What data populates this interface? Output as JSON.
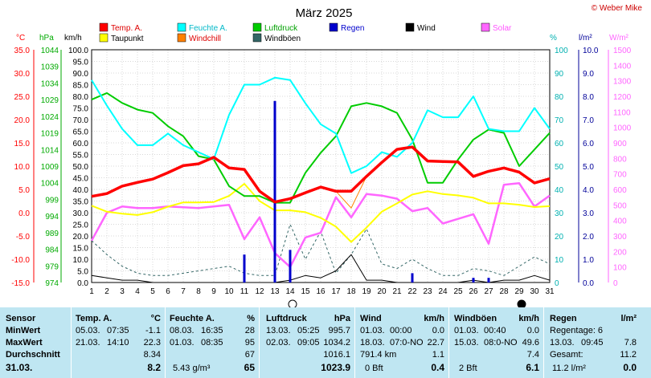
{
  "title": "März 2025",
  "copyright": "© Weber Mike",
  "colors": {
    "temp": "#ff0000",
    "dew": "#ffff00",
    "humidity": "#00ffff",
    "windchill": "#ff8000",
    "pressure": "#00cc00",
    "gusts": "#336666",
    "rain": "#0000cc",
    "wind": "#000000",
    "solar": "#ff66ff",
    "axis_c": "#ff0000",
    "axis_hpa": "#00aa00",
    "axis_pct": "#00b0b0",
    "axis_rain": "#000099",
    "axis_solar": "#ff66ff",
    "panel": "#bfe6f2"
  },
  "legend": [
    {
      "label": "Temp. A.",
      "color": "#ff0000"
    },
    {
      "label": "Feuchte A.",
      "color": "#00ffff"
    },
    {
      "label": "Luftdruck",
      "color": "#00cc00"
    },
    {
      "label": "Regen",
      "color": "#0000cc"
    },
    {
      "label": "Wind",
      "color": "#000000"
    },
    {
      "label": "Solar",
      "color": "#ff66ff"
    },
    {
      "label": "Taupunkt",
      "color": "#ffff00"
    },
    {
      "label": "Windchill",
      "color": "#ff8000"
    },
    {
      "label": "Windböen",
      "color": "#336666"
    }
  ],
  "axes": {
    "c": {
      "unit": "°C",
      "min": -15,
      "max": 35,
      "ticks": [
        "35.0",
        "30.0",
        "25.0",
        "20.0",
        "15.0",
        "10.0",
        "5.0",
        "0.0",
        "-5.0",
        "-10.0",
        "-15.0"
      ]
    },
    "hpa": {
      "unit": "hPa",
      "ticks": [
        "1044",
        "1039",
        "1034",
        "1029",
        "1024",
        "1019",
        "1014",
        "1009",
        "1004",
        "999",
        "994",
        "989",
        "984",
        "979",
        "974"
      ]
    },
    "kmh": {
      "unit": "km/h",
      "min": 0,
      "max": 100,
      "ticks": [
        "100.0",
        "95.0",
        "90.0",
        "85.0",
        "80.0",
        "75.0",
        "70.0",
        "65.0",
        "60.0",
        "55.0",
        "50.0",
        "45.0",
        "40.0",
        "35.0",
        "30.0",
        "25.0",
        "20.0",
        "15.0",
        "10.0",
        "5.0",
        "0.0"
      ]
    },
    "pct": {
      "unit": "%",
      "ticks": [
        "100",
        "90",
        "80",
        "70",
        "60",
        "50",
        "40",
        "30",
        "20",
        "10",
        "0"
      ]
    },
    "rain": {
      "unit": "l/m²",
      "ticks": [
        "10.0",
        "9.0",
        "8.0",
        "7.0",
        "6.0",
        "5.0",
        "4.0",
        "3.0",
        "2.0",
        "1.0",
        "0.0"
      ]
    },
    "solar": {
      "unit": "W/m²",
      "ticks": [
        "1500",
        "1400",
        "1300",
        "1200",
        "1100",
        "1000",
        "900",
        "800",
        "700",
        "600",
        "500",
        "400",
        "300",
        "200",
        "100",
        "0"
      ]
    },
    "days": [
      "1",
      "2",
      "3",
      "4",
      "5",
      "6",
      "7",
      "8",
      "9",
      "10",
      "11",
      "12",
      "13",
      "14",
      "15",
      "16",
      "17",
      "18",
      "19",
      "20",
      "21",
      "22",
      "23",
      "24",
      "25",
      "26",
      "27",
      "28",
      "29",
      "30",
      "31"
    ]
  },
  "chart_data": {
    "type": "line",
    "title": "März 2025",
    "x": [
      1,
      2,
      3,
      4,
      5,
      6,
      7,
      8,
      9,
      10,
      11,
      12,
      13,
      14,
      15,
      16,
      17,
      18,
      19,
      20,
      21,
      22,
      23,
      24,
      25,
      26,
      27,
      28,
      29,
      30,
      31
    ],
    "series": [
      {
        "name": "Temp. A.",
        "axis": "°C",
        "values": [
          3.5,
          4.1,
          5.7,
          6.5,
          7.2,
          8.6,
          10.1,
          10.5,
          11.9,
          9.6,
          9.3,
          4.6,
          2.3,
          3.0,
          4.3,
          5.5,
          4.6,
          4.6,
          7.8,
          10.8,
          13.6,
          14.1,
          11.1,
          11.0,
          10.9,
          7.8,
          8.9,
          9.6,
          8.7,
          6.4,
          7.3
        ]
      },
      {
        "name": "Taupunkt",
        "axis": "°C",
        "values": [
          1.5,
          0.2,
          -0.2,
          -0.5,
          0.1,
          1.3,
          2.2,
          2.2,
          2.3,
          3.6,
          6.2,
          2.5,
          0.5,
          0.5,
          0.1,
          -1.1,
          -3.0,
          -6.3,
          -3.2,
          0.2,
          2.0,
          3.9,
          4.6,
          4.0,
          3.7,
          3.2,
          2.0,
          2.0,
          1.7,
          1.2,
          1.4
        ]
      },
      {
        "name": "Feuchte A.",
        "axis": "%",
        "values": [
          87,
          76,
          66,
          59,
          59,
          64,
          59,
          56,
          53,
          72,
          85,
          85,
          88,
          87,
          77,
          68,
          64,
          47,
          50,
          56,
          54,
          60,
          74,
          71,
          71,
          80,
          66,
          65,
          65,
          75,
          66
        ]
      },
      {
        "name": "Windchill",
        "axis": "°C",
        "values": [
          3.5,
          4.1,
          5.7,
          6.5,
          7.2,
          8.6,
          10.1,
          10.5,
          11.9,
          9.6,
          9.3,
          4.6,
          2.3,
          3.0,
          4.3,
          5.5,
          4.6,
          1.0,
          7.8,
          10.8,
          13.6,
          14.1,
          11.1,
          11.0,
          10.9,
          7.8,
          8.9,
          9.6,
          8.7,
          6.4,
          7.3
        ]
      },
      {
        "name": "Luftdruck",
        "axis": "hPa",
        "values": [
          1029,
          1031,
          1028,
          1026,
          1025,
          1021,
          1018,
          1012,
          1011,
          1003,
          1000,
          1000,
          998,
          998,
          1007,
          1013,
          1018,
          1027,
          1028,
          1027,
          1025,
          1017,
          1004,
          1004,
          1011,
          1017,
          1020,
          1019,
          1009,
          1014,
          1019
        ]
      },
      {
        "name": "Windböen",
        "axis": "km/h",
        "values": [
          18,
          12,
          7,
          4,
          3,
          3,
          4,
          5,
          6,
          7,
          4,
          3,
          3,
          25,
          10,
          22,
          4,
          12,
          23,
          8,
          6,
          10,
          6,
          3,
          3,
          6,
          5,
          3,
          7,
          11,
          8
        ]
      },
      {
        "name": "Regen",
        "axis": "l/m²",
        "values": [
          0,
          0,
          0,
          0,
          0,
          0,
          0,
          0,
          0,
          0,
          1.2,
          0,
          7.8,
          1.4,
          0,
          0,
          0,
          0,
          0,
          0,
          0,
          0.4,
          0,
          0,
          0,
          0.2,
          0.2,
          0,
          0,
          0,
          0
        ]
      },
      {
        "name": "Wind",
        "axis": "km/h",
        "values": [
          3,
          2,
          1,
          1,
          0,
          0,
          0,
          0,
          0,
          0,
          0,
          0,
          0,
          1,
          3,
          2,
          5,
          12,
          1,
          1,
          0,
          0,
          0,
          0,
          0,
          1,
          0,
          1,
          1,
          3,
          1
        ]
      },
      {
        "name": "Solar",
        "axis": "W/m²",
        "values": [
          270,
          450,
          490,
          480,
          480,
          490,
          485,
          480,
          490,
          500,
          280,
          420,
          190,
          100,
          290,
          320,
          550,
          420,
          570,
          560,
          540,
          460,
          480,
          380,
          410,
          440,
          250,
          630,
          640,
          490,
          560
        ]
      }
    ],
    "markers": {
      "full_moon_day": 14,
      "new_moon_day": 29
    }
  },
  "stats": {
    "headers": {
      "sensor": "Sensor",
      "temp": "Temp. A.",
      "temp_unit": "°C",
      "hum": "Feuchte A.",
      "hum_unit": "%",
      "pres": "Luftdruck",
      "pres_unit": "hPa",
      "wind": "Wind",
      "wind_unit": "km/h",
      "gust": "Windböen",
      "gust_unit": "km/h",
      "rain": "Regen",
      "rain_unit": "l/m²"
    },
    "labels": {
      "min": "MinWert",
      "max": "MaxWert",
      "avg": "Durchschnitt",
      "date": "31.03."
    },
    "temp": {
      "min_date": "05.03.",
      "min_time": "07:35",
      "min_val": "-1.1",
      "max_date": "21.03.",
      "max_time": "14:10",
      "max_val": "22.3",
      "avg": "8.34",
      "current": "8.2"
    },
    "hum": {
      "min_date": "08.03.",
      "min_time": "16:35",
      "min_val": "28",
      "max_date": "01.03.",
      "max_time": "08:35",
      "max_val": "95",
      "avg": "67",
      "solar_val": "5.43 g/m³",
      "current": "65"
    },
    "pres": {
      "min_date": "13.03.",
      "min_time": "05:25",
      "min_val": "995.7",
      "max_date": "02.03.",
      "max_time": "09:05",
      "max_val": "1034.2",
      "avg": "1016.1",
      "current": "1023.9"
    },
    "wind": {
      "min_date": "01.03.",
      "min_time": "00:00",
      "min_val": "0.0",
      "max_date": "18.03.",
      "max_time": "07:0-NO",
      "max_val": "22.7",
      "dist": "791.4 km",
      "avg": "1.1",
      "bft": "0 Bft",
      "current": "0.4"
    },
    "gust": {
      "min_date": "01.03.",
      "min_time": "00:40",
      "min_val": "0.0",
      "max_date": "15.03.",
      "max_time": "08:0-NO",
      "max_val": "49.6",
      "avg": "7.4",
      "bft": "2 Bft",
      "current": "6.1"
    },
    "rain": {
      "days_label": "Regentage: 6",
      "max_date": "13.03.",
      "max_time": "09:45",
      "max_val": "7.8",
      "total_label": "Gesamt:",
      "total_val": "11.2",
      "current": "11.2 l/m²",
      "current_val": "0.0"
    }
  }
}
